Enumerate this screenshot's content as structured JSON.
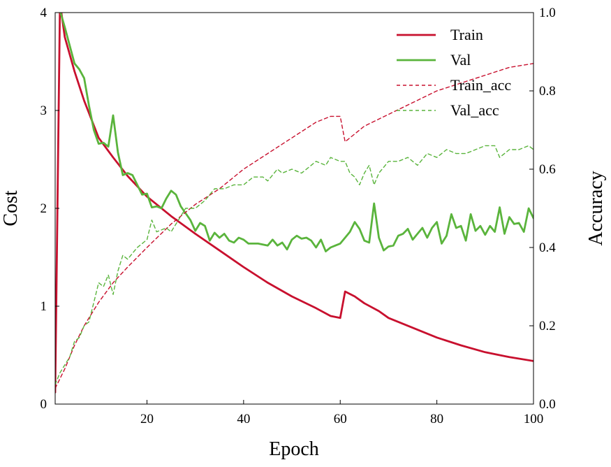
{
  "chart_data": {
    "type": "line",
    "xlabel": "Epoch",
    "ylabel_left": "Cost",
    "ylabel_right": "Accuracy",
    "xlim": [
      1,
      100
    ],
    "ylim_left": [
      0,
      4
    ],
    "ylim_right": [
      0.0,
      1.0
    ],
    "x_ticks": [
      20,
      40,
      60,
      80,
      100
    ],
    "y_left_ticks": [
      0,
      1,
      2,
      3,
      4
    ],
    "y_right_ticks": [
      "0.0",
      "0.2",
      "0.4",
      "0.6",
      "0.8",
      "1.0"
    ],
    "grid": false,
    "legend_position": "top-right",
    "series": [
      {
        "name": "Train",
        "axis": "left",
        "color": "#c8102e",
        "style": "solid",
        "points": [
          [
            1,
            0.12
          ],
          [
            2,
            4.1
          ],
          [
            3,
            3.75
          ],
          [
            5,
            3.4
          ],
          [
            7,
            3.1
          ],
          [
            10,
            2.72
          ],
          [
            13,
            2.52
          ],
          [
            16,
            2.33
          ],
          [
            20,
            2.12
          ],
          [
            25,
            1.92
          ],
          [
            30,
            1.74
          ],
          [
            35,
            1.57
          ],
          [
            40,
            1.4
          ],
          [
            45,
            1.24
          ],
          [
            50,
            1.1
          ],
          [
            55,
            0.98
          ],
          [
            58,
            0.9
          ],
          [
            60,
            0.88
          ],
          [
            61,
            1.15
          ],
          [
            63,
            1.1
          ],
          [
            65,
            1.03
          ],
          [
            68,
            0.95
          ],
          [
            70,
            0.88
          ],
          [
            75,
            0.78
          ],
          [
            80,
            0.68
          ],
          [
            85,
            0.6
          ],
          [
            90,
            0.53
          ],
          [
            95,
            0.48
          ],
          [
            100,
            0.44
          ]
        ]
      },
      {
        "name": "Val",
        "axis": "left",
        "color": "#5ab43c",
        "style": "solid",
        "points": [
          [
            2,
            4.02
          ],
          [
            3,
            3.85
          ],
          [
            5,
            3.48
          ],
          [
            6,
            3.42
          ],
          [
            7,
            3.33
          ],
          [
            8,
            3.05
          ],
          [
            9,
            2.8
          ],
          [
            10,
            2.66
          ],
          [
            11,
            2.67
          ],
          [
            12,
            2.63
          ],
          [
            13,
            2.95
          ],
          [
            14,
            2.57
          ],
          [
            15,
            2.34
          ],
          [
            16,
            2.36
          ],
          [
            17,
            2.34
          ],
          [
            18,
            2.24
          ],
          [
            19,
            2.14
          ],
          [
            20,
            2.15
          ],
          [
            21,
            2.01
          ],
          [
            22,
            2.02
          ],
          [
            23,
            2.0
          ],
          [
            24,
            2.1
          ],
          [
            25,
            2.18
          ],
          [
            26,
            2.14
          ],
          [
            27,
            2.02
          ],
          [
            28,
            1.95
          ],
          [
            29,
            1.88
          ],
          [
            30,
            1.77
          ],
          [
            31,
            1.85
          ],
          [
            32,
            1.82
          ],
          [
            33,
            1.67
          ],
          [
            34,
            1.75
          ],
          [
            35,
            1.7
          ],
          [
            36,
            1.74
          ],
          [
            37,
            1.67
          ],
          [
            38,
            1.65
          ],
          [
            39,
            1.7
          ],
          [
            40,
            1.68
          ],
          [
            41,
            1.64
          ],
          [
            43,
            1.64
          ],
          [
            45,
            1.62
          ],
          [
            46,
            1.68
          ],
          [
            47,
            1.62
          ],
          [
            48,
            1.65
          ],
          [
            49,
            1.58
          ],
          [
            50,
            1.68
          ],
          [
            51,
            1.72
          ],
          [
            52,
            1.69
          ],
          [
            53,
            1.7
          ],
          [
            54,
            1.67
          ],
          [
            55,
            1.6
          ],
          [
            56,
            1.68
          ],
          [
            57,
            1.56
          ],
          [
            58,
            1.6
          ],
          [
            59,
            1.62
          ],
          [
            60,
            1.64
          ],
          [
            61,
            1.7
          ],
          [
            62,
            1.76
          ],
          [
            63,
            1.86
          ],
          [
            64,
            1.79
          ],
          [
            65,
            1.67
          ],
          [
            66,
            1.65
          ],
          [
            67,
            2.05
          ],
          [
            68,
            1.7
          ],
          [
            69,
            1.57
          ],
          [
            70,
            1.61
          ],
          [
            71,
            1.62
          ],
          [
            72,
            1.72
          ],
          [
            73,
            1.74
          ],
          [
            74,
            1.79
          ],
          [
            75,
            1.68
          ],
          [
            76,
            1.74
          ],
          [
            77,
            1.8
          ],
          [
            78,
            1.7
          ],
          [
            79,
            1.8
          ],
          [
            80,
            1.86
          ],
          [
            81,
            1.64
          ],
          [
            82,
            1.72
          ],
          [
            83,
            1.94
          ],
          [
            84,
            1.8
          ],
          [
            85,
            1.82
          ],
          [
            86,
            1.67
          ],
          [
            87,
            1.94
          ],
          [
            88,
            1.77
          ],
          [
            89,
            1.82
          ],
          [
            90,
            1.73
          ],
          [
            91,
            1.82
          ],
          [
            92,
            1.76
          ],
          [
            93,
            2.01
          ],
          [
            94,
            1.74
          ],
          [
            95,
            1.91
          ],
          [
            96,
            1.84
          ],
          [
            97,
            1.85
          ],
          [
            98,
            1.76
          ],
          [
            99,
            2.0
          ],
          [
            100,
            1.9
          ]
        ]
      },
      {
        "name": "Train_acc",
        "axis": "right",
        "color": "#c8102e",
        "style": "dashed",
        "points": [
          [
            1,
            0.04
          ],
          [
            3,
            0.09
          ],
          [
            5,
            0.15
          ],
          [
            7,
            0.2
          ],
          [
            10,
            0.26
          ],
          [
            13,
            0.31
          ],
          [
            16,
            0.35
          ],
          [
            20,
            0.4
          ],
          [
            25,
            0.46
          ],
          [
            30,
            0.51
          ],
          [
            35,
            0.55
          ],
          [
            40,
            0.6
          ],
          [
            45,
            0.64
          ],
          [
            50,
            0.68
          ],
          [
            55,
            0.72
          ],
          [
            58,
            0.735
          ],
          [
            60,
            0.735
          ],
          [
            61,
            0.67
          ],
          [
            63,
            0.69
          ],
          [
            65,
            0.71
          ],
          [
            70,
            0.74
          ],
          [
            75,
            0.77
          ],
          [
            80,
            0.8
          ],
          [
            85,
            0.82
          ],
          [
            90,
            0.84
          ],
          [
            95,
            0.86
          ],
          [
            100,
            0.87
          ]
        ]
      },
      {
        "name": "Val_acc",
        "axis": "right",
        "color": "#5ab43c",
        "style": "dashed",
        "points": [
          [
            1,
            0.05
          ],
          [
            2,
            0.08
          ],
          [
            3,
            0.1
          ],
          [
            4,
            0.12
          ],
          [
            5,
            0.16
          ],
          [
            6,
            0.17
          ],
          [
            7,
            0.2
          ],
          [
            8,
            0.21
          ],
          [
            9,
            0.26
          ],
          [
            10,
            0.31
          ],
          [
            11,
            0.3
          ],
          [
            12,
            0.33
          ],
          [
            13,
            0.28
          ],
          [
            14,
            0.34
          ],
          [
            15,
            0.38
          ],
          [
            16,
            0.37
          ],
          [
            18,
            0.4
          ],
          [
            20,
            0.42
          ],
          [
            21,
            0.47
          ],
          [
            22,
            0.44
          ],
          [
            24,
            0.45
          ],
          [
            25,
            0.44
          ],
          [
            27,
            0.48
          ],
          [
            28,
            0.5
          ],
          [
            30,
            0.5
          ],
          [
            32,
            0.52
          ],
          [
            34,
            0.55
          ],
          [
            36,
            0.55
          ],
          [
            38,
            0.56
          ],
          [
            40,
            0.56
          ],
          [
            42,
            0.58
          ],
          [
            44,
            0.58
          ],
          [
            45,
            0.57
          ],
          [
            47,
            0.6
          ],
          [
            48,
            0.59
          ],
          [
            50,
            0.6
          ],
          [
            52,
            0.59
          ],
          [
            54,
            0.61
          ],
          [
            55,
            0.62
          ],
          [
            57,
            0.61
          ],
          [
            58,
            0.63
          ],
          [
            60,
            0.62
          ],
          [
            61,
            0.62
          ],
          [
            62,
            0.59
          ],
          [
            63,
            0.58
          ],
          [
            64,
            0.56
          ],
          [
            65,
            0.59
          ],
          [
            66,
            0.61
          ],
          [
            67,
            0.56
          ],
          [
            68,
            0.59
          ],
          [
            70,
            0.62
          ],
          [
            72,
            0.62
          ],
          [
            74,
            0.63
          ],
          [
            76,
            0.61
          ],
          [
            78,
            0.64
          ],
          [
            80,
            0.63
          ],
          [
            82,
            0.65
          ],
          [
            84,
            0.64
          ],
          [
            86,
            0.64
          ],
          [
            88,
            0.65
          ],
          [
            90,
            0.66
          ],
          [
            92,
            0.66
          ],
          [
            93,
            0.63
          ],
          [
            95,
            0.65
          ],
          [
            97,
            0.65
          ],
          [
            99,
            0.66
          ],
          [
            100,
            0.65
          ]
        ]
      }
    ]
  }
}
